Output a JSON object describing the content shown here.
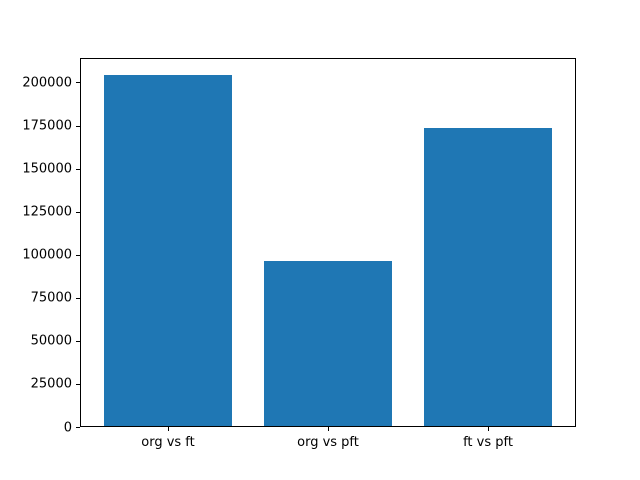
{
  "chart_data": {
    "type": "bar",
    "title": "",
    "xlabel": "",
    "ylabel": "",
    "categories": [
      "org vs ft",
      "org vs pft",
      "ft vs pft"
    ],
    "values": [
      204000,
      95500,
      173000
    ],
    "yticks": [
      0,
      25000,
      50000,
      75000,
      100000,
      125000,
      150000,
      175000,
      200000
    ],
    "ylim": [
      0,
      214200
    ],
    "xlim": [
      -0.55,
      2.55
    ],
    "bar_width": 0.8,
    "bar_color": "#1f77b4",
    "grid": false,
    "legend_position": "none"
  },
  "colors": {
    "background": "#ffffff",
    "axes_frame": "#000000",
    "tick_text": "#000000"
  }
}
